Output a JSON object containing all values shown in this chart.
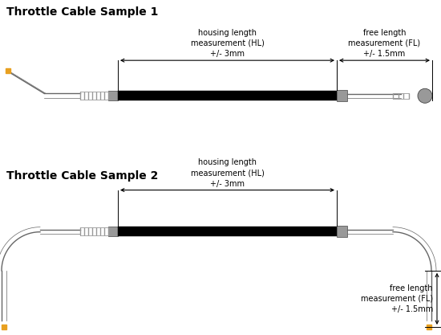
{
  "title1": "Throttle Cable Sample 1",
  "title2": "Throttle Cable Sample 2",
  "bg_color": "#ffffff",
  "title_fontsize": 10,
  "label_fontsize": 7,
  "cable_color": "#000000",
  "fitting_color": "#999999",
  "line_color": "#666666",
  "orange_color": "#e8a020",
  "hl_label": "housing length\nmeasurement (HL)\n+/- 3mm",
  "fl_label1": "free length\nmeasurement (FL)\n+/- 1.5mm",
  "fl_label2": "free length\nmeasurement (FL)\n+/- 1.5mm"
}
